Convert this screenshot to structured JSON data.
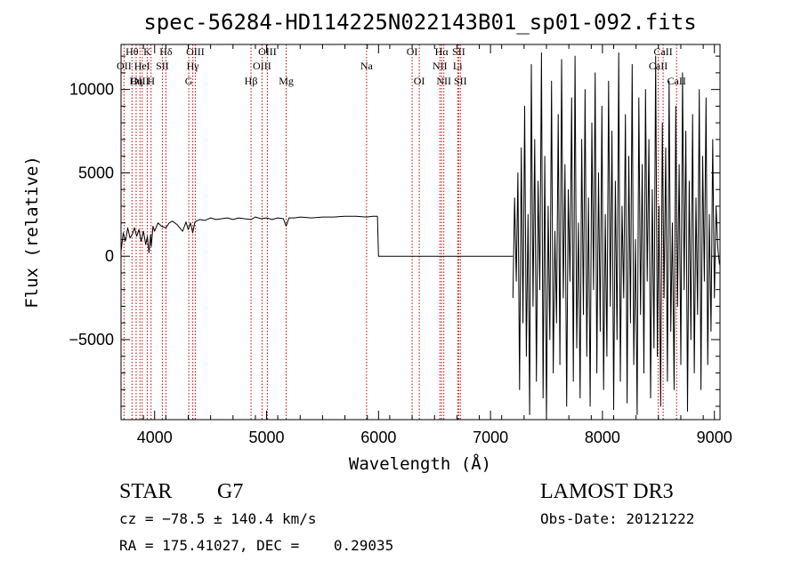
{
  "chart_data": {
    "type": "line",
    "title": "spec-56284-HD114225N022143B01_sp01-092.fits",
    "xlabel": "Wavelength (Å)",
    "ylabel": "Flux (relative)",
    "xlim": [
      3700,
      9050
    ],
    "ylim": [
      -9800,
      12700
    ],
    "x_ticks": [
      4000,
      5000,
      6000,
      7000,
      8000,
      9000
    ],
    "y_ticks": [
      -5000,
      0,
      5000,
      10000
    ],
    "x_tick_labels": [
      "4000",
      "5000",
      "6000",
      "7000",
      "8000",
      "9000"
    ],
    "y_tick_labels": [
      "−5000",
      "0",
      "5000",
      "10000"
    ],
    "series": [
      {
        "name": "spectrum",
        "segments": [
          {
            "x": [
              3700,
              3720,
              3740,
              3760,
              3780,
              3800,
              3820,
              3840,
              3860,
              3880,
              3900,
              3920,
              3935,
              3950,
              3965,
              3970,
              3985,
              4000,
              4030,
              4060,
              4101,
              4130,
              4160,
              4200,
              4250,
              4280,
              4300,
              4320,
              4340,
              4360,
              4400,
              4450,
              4500,
              4550,
              4600,
              4650,
              4700,
              4750,
              4800,
              4861,
              4900,
              4950,
              5000,
              5050,
              5100,
              5150,
              5175,
              5200,
              5250,
              5300,
              5400,
              5500,
              5600,
              5700,
              5800,
              5890,
              5950,
              5990
            ],
            "y": [
              300,
              1400,
              900,
              1700,
              1100,
              1300,
              1700,
              1200,
              1600,
              900,
              1500,
              700,
              1200,
              200,
              1300,
              600,
              1800,
              1500,
              2000,
              1800,
              1700,
              2000,
              2100,
              1900,
              1500,
              2050,
              1600,
              2000,
              1400,
              2050,
              2200,
              2150,
              2300,
              2200,
              2250,
              2300,
              2200,
              2300,
              2250,
              2200,
              2350,
              2250,
              2300,
              2200,
              2300,
              2250,
              1800,
              2300,
              2300,
              2350,
              2300,
              2350,
              2350,
              2400,
              2400,
              2350,
              2400,
              2400
            ]
          },
          {
            "x": [
              5990,
              6000,
              6010,
              6100,
              6400,
              6700,
              7000,
              7150,
              7200
            ],
            "y": [
              2400,
              0,
              0,
              0,
              0,
              0,
              0,
              0,
              0
            ]
          },
          {
            "amplitude_max": 12000,
            "note": "noisy region 7200-9050 A with extreme oscillations",
            "x": [
              7200,
              7215,
              7230,
              7245,
              7260,
              7275,
              7290,
              7305,
              7320,
              7335,
              7350,
              7365,
              7380,
              7395,
              7410,
              7425,
              7440,
              7455,
              7470,
              7485,
              7500,
              7515,
              7530,
              7545,
              7560,
              7575,
              7590,
              7605,
              7620,
              7635,
              7650,
              7665,
              7680,
              7695,
              7710,
              7725,
              7740,
              7755,
              7770,
              7785,
              7800,
              7815,
              7830,
              7845,
              7860,
              7875,
              7890,
              7905,
              7920,
              7935,
              7950,
              7965,
              7980,
              7995,
              8010,
              8025,
              8040,
              8055,
              8070,
              8085,
              8100,
              8115,
              8130,
              8145,
              8160,
              8175,
              8190,
              8205,
              8220,
              8235,
              8250,
              8265,
              8280,
              8295,
              8310,
              8325,
              8340,
              8355,
              8370,
              8385,
              8400,
              8415,
              8430,
              8445,
              8460,
              8475,
              8490,
              8505,
              8520,
              8535,
              8550,
              8565,
              8580,
              8595,
              8610,
              8625,
              8640,
              8655,
              8670,
              8685,
              8700,
              8715,
              8730,
              8745,
              8760,
              8775,
              8790,
              8805,
              8820,
              8835,
              8850,
              8865,
              8880,
              8895,
              8910,
              8925,
              8940,
              8955,
              8970,
              8985,
              9000,
              9015,
              9030,
              9045
            ],
            "y": [
              -2500,
              3500,
              -1500,
              5000,
              -8000,
              6500,
              -4000,
              9000,
              -6000,
              2500,
              -9500,
              11500,
              -3000,
              7000,
              -7500,
              4500,
              -2000,
              12200,
              -8500,
              6000,
              -9800,
              3000,
              -5000,
              10500,
              -7000,
              1500,
              -4000,
              8500,
              -6500,
              11800,
              -2500,
              5500,
              -9000,
              4000,
              -1500,
              9500,
              -7500,
              12000,
              -5500,
              2000,
              -8500,
              7000,
              -3500,
              10000,
              -6000,
              3500,
              -9000,
              8000,
              -2000,
              11000,
              -7000,
              5000,
              -4500,
              9000,
              -8000,
              2500,
              -6000,
              10500,
              -3000,
              7500,
              -9200,
              4500,
              -5000,
              12200,
              -7500,
              3000,
              -2500,
              8500,
              -8800,
              6000,
              -4000,
              11500,
              -6500,
              1000,
              -9500,
              9500,
              -3500,
              5500,
              -7000,
              10000,
              -1500,
              7000,
              -8500,
              4000,
              -5500,
              12000,
              -6000,
              3000,
              -9000,
              8000,
              -2500,
              6500,
              -7500,
              10500,
              -4500,
              2000,
              -8000,
              9000,
              -3000,
              5500,
              -6500,
              11000,
              -2000,
              7500,
              -9300,
              4500,
              -5000,
              8500,
              -7000,
              3500,
              -3500,
              10000,
              -8000,
              6000,
              -1500,
              9500,
              -6500,
              2500,
              -4500,
              7000,
              -2500,
              3000,
              500,
              -500
            ]
          }
        ]
      }
    ],
    "annotations": {
      "lines": [
        {
          "label": "Hθ",
          "x": 3798,
          "row": 1
        },
        {
          "label": "OII",
          "x": 3727,
          "row": 2
        },
        {
          "label": "OIII",
          "x": 3869,
          "row": 3
        },
        {
          "label": "Hη",
          "x": 3835,
          "row": 3
        },
        {
          "label": "K",
          "x": 3934,
          "row": 1
        },
        {
          "label": "HeI",
          "x": 3889,
          "row": 2
        },
        {
          "label": "H",
          "x": 3968,
          "row": 3
        },
        {
          "label": "Hδ",
          "x": 4101,
          "row": 1
        },
        {
          "label": "SII",
          "x": 4069,
          "row": 2
        },
        {
          "label": "OIII",
          "x": 4363,
          "row": 1
        },
        {
          "label": "Hγ",
          "x": 4341,
          "row": 2
        },
        {
          "label": "G",
          "x": 4305,
          "row": 3
        },
        {
          "label": "OIII",
          "x": 5007,
          "row": 1
        },
        {
          "label": "OIII",
          "x": 4959,
          "row": 2
        },
        {
          "label": "Hβ",
          "x": 4861,
          "row": 3
        },
        {
          "label": "Mg",
          "x": 5175,
          "row": 3
        },
        {
          "label": "Na",
          "x": 5893,
          "row": 2
        },
        {
          "label": "OI",
          "x": 6300,
          "row": 1
        },
        {
          "label": "OI",
          "x": 6364,
          "row": 3
        },
        {
          "label": "Hα",
          "x": 6563,
          "row": 1
        },
        {
          "label": "SII",
          "x": 6716,
          "row": 1
        },
        {
          "label": "NII",
          "x": 6548,
          "row": 2
        },
        {
          "label": "Li",
          "x": 6707,
          "row": 2
        },
        {
          "label": "NII",
          "x": 6583,
          "row": 3
        },
        {
          "label": "SII",
          "x": 6731,
          "row": 3
        },
        {
          "label": "CaII",
          "x": 8542,
          "row": 1
        },
        {
          "label": "CaII",
          "x": 8498,
          "row": 2
        },
        {
          "label": "CaII",
          "x": 8662,
          "row": 3
        }
      ]
    }
  },
  "info": {
    "object_type": "STAR",
    "subclass": "G7",
    "survey": "LAMOST DR3",
    "cz": "cz = −78.5 ± 140.4 km/s",
    "obs_date": "Obs-Date: 20121222",
    "coords": "RA = 175.41027, DEC =    0.29035"
  },
  "colors": {
    "axis": "#000000",
    "line": "#000000",
    "marker": "#cc0000",
    "background": "#ffffff"
  }
}
